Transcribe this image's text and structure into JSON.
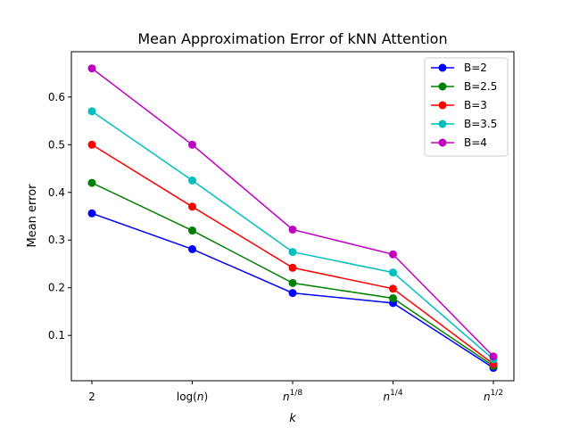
{
  "chart_data": {
    "type": "line",
    "title": "Mean Approximation Error of kNN Attention",
    "xlabel": "k",
    "ylabel": "Mean error",
    "categories": [
      "2",
      "log(n)",
      "n^{1/8}",
      "n^{1/4}",
      "n^{1/2}"
    ],
    "ylim": [
      0.005,
      0.695
    ],
    "yticks": [
      0.1,
      0.2,
      0.3,
      0.4,
      0.5,
      0.6
    ],
    "grid": false,
    "legend_position": "top-right",
    "series": [
      {
        "name": "B=2",
        "color": "#0000ff",
        "values": [
          0.356,
          0.281,
          0.189,
          0.168,
          0.032
        ]
      },
      {
        "name": "B=2.5",
        "color": "#008000",
        "values": [
          0.42,
          0.32,
          0.21,
          0.178,
          0.036
        ]
      },
      {
        "name": "B=3",
        "color": "#ff0000",
        "values": [
          0.5,
          0.37,
          0.242,
          0.198,
          0.04
        ]
      },
      {
        "name": "B=3.5",
        "color": "#00bfbf",
        "values": [
          0.57,
          0.425,
          0.275,
          0.232,
          0.05
        ]
      },
      {
        "name": "B=4",
        "color": "#bf00bf",
        "values": [
          0.66,
          0.5,
          0.322,
          0.27,
          0.056
        ]
      }
    ]
  }
}
